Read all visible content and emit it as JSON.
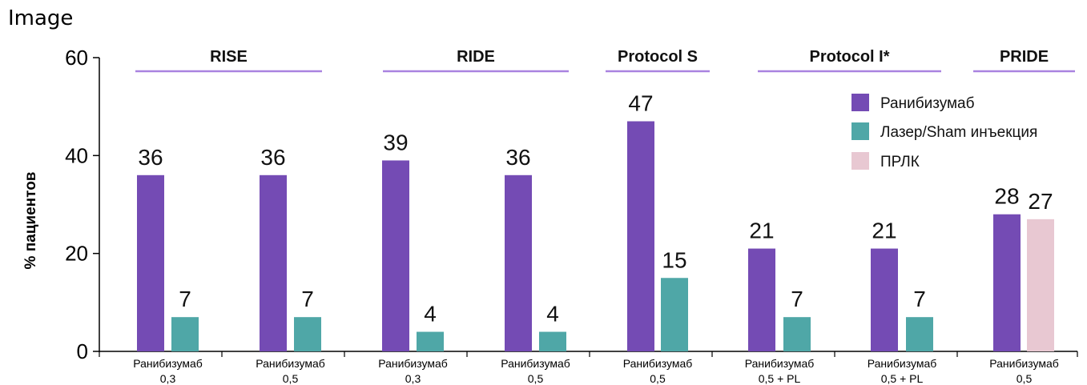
{
  "corner_label": "Image",
  "chart_data": {
    "type": "bar",
    "ylabel": "% пациентов",
    "ylim": [
      0,
      60
    ],
    "yticks": [
      0,
      20,
      40,
      60
    ],
    "study_groups": [
      {
        "label": "RISE",
        "categories": [
          0,
          1
        ]
      },
      {
        "label": "RIDE",
        "categories": [
          2,
          3
        ]
      },
      {
        "label": "Protocol S",
        "categories": [
          4
        ]
      },
      {
        "label": "Protocol I*",
        "categories": [
          5,
          6
        ]
      },
      {
        "label": "PRIDE",
        "categories": [
          7
        ]
      }
    ],
    "categories": [
      [
        "Ранибизумаб",
        "0,3"
      ],
      [
        "Ранибизумаб",
        "0,5"
      ],
      [
        "Ранибизумаб",
        "0,3"
      ],
      [
        "Ранибизумаб",
        "0,5"
      ],
      [
        "Ранибизумаб",
        "0,5"
      ],
      [
        "Ранибизумаб",
        "0,5 + PL"
      ],
      [
        "Ранибизумаб",
        "0,5 + PL"
      ],
      [
        "Ранибизумаб",
        "0,5"
      ]
    ],
    "series": [
      {
        "name": "Ранибизумаб",
        "color": "#744bb4",
        "values": [
          36,
          36,
          39,
          36,
          47,
          21,
          21,
          28
        ]
      },
      {
        "name": "Лазер/Sham инъекция",
        "color": "#4fa7a7",
        "values": [
          7,
          7,
          4,
          4,
          15,
          7,
          7,
          null
        ]
      },
      {
        "name": "ПРЛК",
        "color": "#e8c8d2",
        "values": [
          null,
          null,
          null,
          null,
          null,
          null,
          null,
          27
        ]
      }
    ],
    "legend_position": "top-right",
    "group_line_color": "#a983e0"
  }
}
